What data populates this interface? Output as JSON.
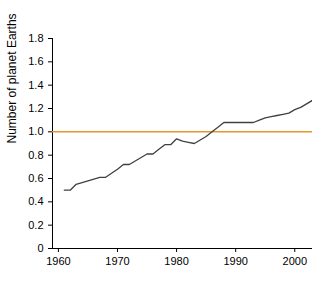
{
  "chart_data": {
    "type": "line",
    "y_label": "Number of planet Earths",
    "x": [
      1961,
      1962,
      1963,
      1965,
      1967,
      1968,
      1970,
      1971,
      1972,
      1974,
      1975,
      1976,
      1977,
      1978,
      1979,
      1980,
      1981,
      1982,
      1983,
      1984,
      1985,
      1986,
      1987,
      1988,
      1989,
      1990,
      1991,
      1992,
      1993,
      1994,
      1995,
      1996,
      1997,
      1998,
      1999,
      2000,
      2001,
      2002,
      2003
    ],
    "values": [
      0.5,
      0.5,
      0.55,
      0.58,
      0.61,
      0.61,
      0.68,
      0.72,
      0.72,
      0.78,
      0.81,
      0.81,
      0.85,
      0.89,
      0.89,
      0.94,
      0.92,
      0.91,
      0.9,
      0.93,
      0.96,
      1.0,
      1.04,
      1.08,
      1.08,
      1.08,
      1.08,
      1.08,
      1.08,
      1.1,
      1.12,
      1.13,
      1.14,
      1.15,
      1.16,
      1.19,
      1.21,
      1.24,
      1.27
    ],
    "color": "#404040",
    "reference_line": {
      "value": 1,
      "color": "#e8962c"
    },
    "xlim": [
      1959,
      2003
    ],
    "xticks": [
      1960,
      1970,
      1980,
      1990,
      2000
    ],
    "ylim": [
      0,
      1.8
    ],
    "yticks": [
      0,
      0.2,
      0.4,
      0.6,
      0.8,
      {
        "value": 1,
        "label": "1.0"
      },
      1.2,
      1.4,
      1.6,
      1.8
    ],
    "grid": false
  }
}
